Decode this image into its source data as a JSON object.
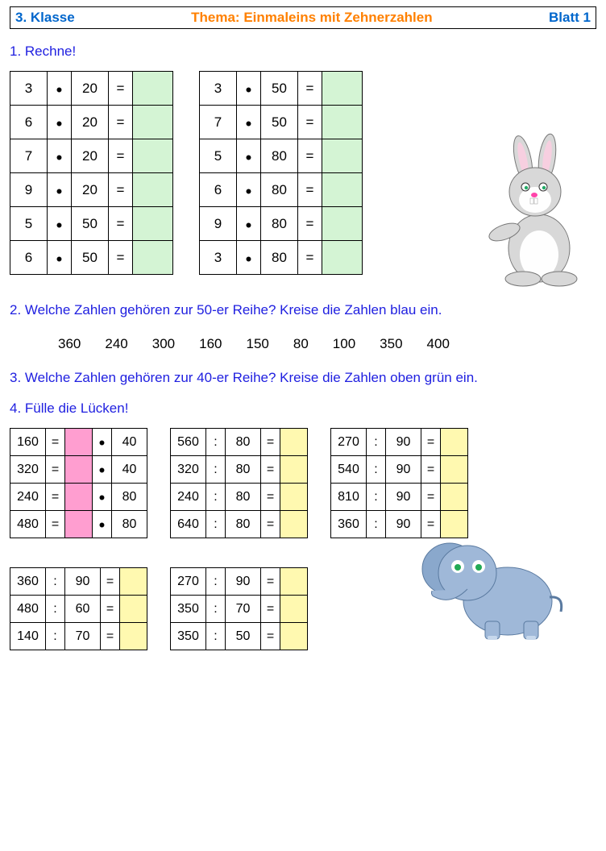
{
  "header": {
    "left": "3. Klasse",
    "center": "Thema: Einmaleins mit Zehnerzahlen",
    "right": "Blatt 1"
  },
  "tasks": {
    "t1": "1. Rechne!",
    "t2": "2. Welche Zahlen gehören zur 50-er Reihe? Kreise die Zahlen blau ein.",
    "t3": "3. Welche Zahlen gehören zur 40-er Reihe? Kreise die Zahlen oben grün ein.",
    "t4": "4. Fülle die Lücken!"
  },
  "ops": {
    "dot": "•",
    "eq": "=",
    "div": ":"
  },
  "colors": {
    "answer_green": "#d4f4d4",
    "answer_pink": "#ff9ed0",
    "answer_yellow": "#fff9b0",
    "title_blue": "#2020e0",
    "header_blue": "#0066cc",
    "header_orange": "#ff8000"
  },
  "section1_left": [
    {
      "a": "3",
      "b": "20"
    },
    {
      "a": "6",
      "b": "20"
    },
    {
      "a": "7",
      "b": "20"
    },
    {
      "a": "9",
      "b": "20"
    },
    {
      "a": "5",
      "b": "50"
    },
    {
      "a": "6",
      "b": "50"
    }
  ],
  "section1_right": [
    {
      "a": "3",
      "b": "50"
    },
    {
      "a": "7",
      "b": "50"
    },
    {
      "a": "5",
      "b": "80"
    },
    {
      "a": "6",
      "b": "80"
    },
    {
      "a": "9",
      "b": "80"
    },
    {
      "a": "3",
      "b": "80"
    }
  ],
  "section2_numbers": [
    "360",
    "240",
    "300",
    "160",
    "150",
    "80",
    "100",
    "350",
    "400"
  ],
  "section4_A1": [
    {
      "r": "160",
      "b": "40"
    },
    {
      "r": "320",
      "b": "40"
    },
    {
      "r": "240",
      "b": "80"
    },
    {
      "r": "480",
      "b": "80"
    }
  ],
  "section4_A2": [
    {
      "a": "560",
      "b": "80"
    },
    {
      "a": "320",
      "b": "80"
    },
    {
      "a": "240",
      "b": "80"
    },
    {
      "a": "640",
      "b": "80"
    }
  ],
  "section4_A3": [
    {
      "a": "270",
      "b": "90"
    },
    {
      "a": "540",
      "b": "90"
    },
    {
      "a": "810",
      "b": "90"
    },
    {
      "a": "360",
      "b": "90"
    }
  ],
  "section4_B1": [
    {
      "a": "360",
      "b": "90"
    },
    {
      "a": "480",
      "b": "60"
    },
    {
      "a": "140",
      "b": "70"
    }
  ],
  "section4_B2": [
    {
      "a": "270",
      "b": "90"
    },
    {
      "a": "350",
      "b": "70"
    },
    {
      "a": "350",
      "b": "50"
    }
  ]
}
